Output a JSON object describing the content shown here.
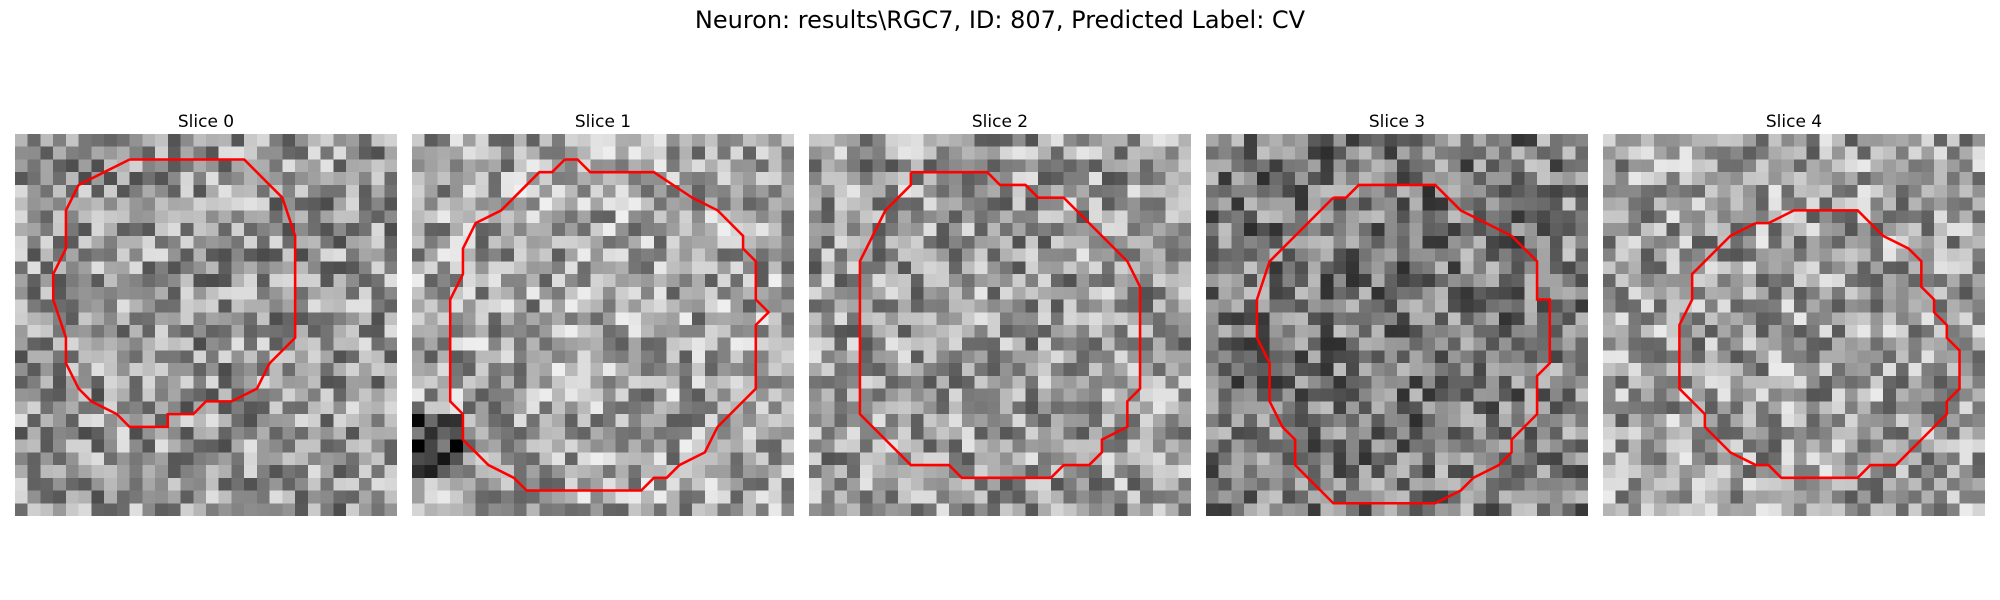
{
  "figure": {
    "title": "Neuron: results\\RGC7, ID: 807, Predicted Label: CV"
  },
  "panels": [
    {
      "title": "Slice 0",
      "contour_color": "#ff0000"
    },
    {
      "title": "Slice 1",
      "contour_color": "#ff0000"
    },
    {
      "title": "Slice 2",
      "contour_color": "#ff0000"
    },
    {
      "title": "Slice 3",
      "contour_color": "#ff0000"
    },
    {
      "title": "Slice 4",
      "contour_color": "#ff0000"
    }
  ],
  "image": {
    "colormap": "gray",
    "contour_count": 5
  }
}
